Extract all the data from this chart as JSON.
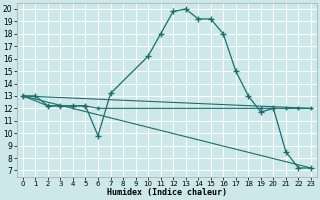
{
  "xlabel": "Humidex (Indice chaleur)",
  "bg_color": "#cce8e8",
  "grid_color": "#ffffff",
  "line_color": "#1a6e6e",
  "xlim": [
    -0.5,
    23.5
  ],
  "ylim": [
    6.5,
    20.5
  ],
  "xticks": [
    0,
    1,
    2,
    3,
    4,
    5,
    6,
    7,
    8,
    9,
    10,
    11,
    12,
    13,
    14,
    15,
    16,
    17,
    18,
    19,
    20,
    21,
    22,
    23
  ],
  "yticks": [
    7,
    8,
    9,
    10,
    11,
    12,
    13,
    14,
    15,
    16,
    17,
    18,
    19,
    20
  ],
  "series0": {
    "x": [
      0,
      1,
      2,
      3,
      4,
      5,
      6,
      7,
      10,
      11,
      12,
      13,
      14,
      15,
      16,
      17,
      18,
      19,
      20,
      21,
      22,
      23
    ],
    "y": [
      13,
      13,
      12.2,
      12.2,
      12.2,
      12.2,
      9.8,
      13.2,
      16.2,
      18,
      19.8,
      20,
      19.2,
      19.2,
      18,
      15,
      13,
      11.7,
      12,
      8.5,
      7.2,
      7.2
    ]
  },
  "series1": {
    "x": [
      0,
      2,
      3,
      4,
      5,
      6,
      19,
      20,
      21,
      22,
      23
    ],
    "y": [
      13,
      12.2,
      12.2,
      12.2,
      12.2,
      12,
      12,
      12,
      12,
      12,
      12
    ]
  },
  "series2": {
    "x": [
      0,
      23
    ],
    "y": [
      13,
      12
    ]
  },
  "series3": {
    "x": [
      0,
      23
    ],
    "y": [
      13,
      7.2
    ]
  }
}
